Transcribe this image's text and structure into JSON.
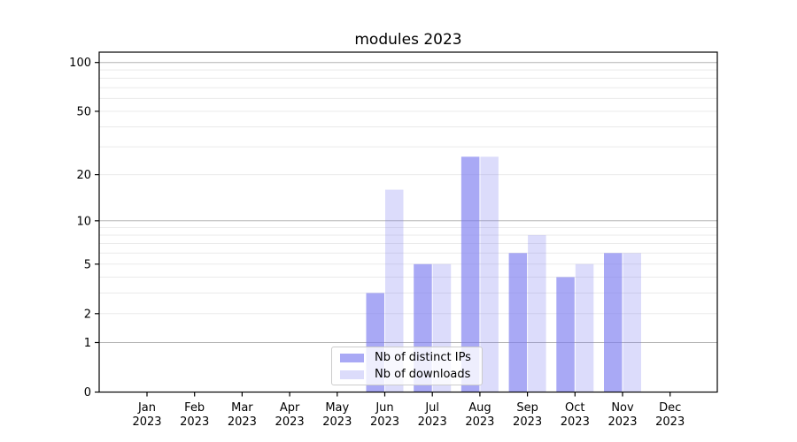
{
  "title": "modules 2023",
  "chart_data": {
    "type": "bar",
    "title": "modules 2023",
    "categories": [
      "Jan 2023",
      "Feb 2023",
      "Mar 2023",
      "Apr 2023",
      "May 2023",
      "Jun 2023",
      "Jul 2023",
      "Aug 2023",
      "Sep 2023",
      "Oct 2023",
      "Nov 2023",
      "Dec 2023"
    ],
    "x_months": [
      "Jan",
      "Feb",
      "Mar",
      "Apr",
      "May",
      "Jun",
      "Jul",
      "Aug",
      "Sep",
      "Oct",
      "Nov",
      "Dec"
    ],
    "x_year": "2023",
    "series": [
      {
        "name": "Nb of distinct IPs",
        "values": [
          0,
          0,
          0,
          0,
          0,
          3,
          5,
          26,
          6,
          4,
          6,
          0
        ]
      },
      {
        "name": "Nb of downloads",
        "values": [
          0,
          0,
          0,
          0,
          0,
          16,
          5,
          26,
          8,
          5,
          6,
          0
        ]
      }
    ],
    "yscale": "log10(1+value)",
    "ylim": [
      0,
      115
    ],
    "y_tick_values": [
      0,
      1,
      2,
      5,
      10,
      20,
      50,
      100
    ],
    "y_tick_labels": [
      "0",
      "1",
      "2",
      "5",
      "10",
      "20",
      "50",
      "100"
    ],
    "y_major_grid": [
      1,
      10,
      100
    ],
    "y_minor_grid": [
      2,
      3,
      4,
      5,
      6,
      7,
      8,
      9,
      20,
      30,
      40,
      50,
      60,
      70,
      80,
      90
    ],
    "grid": "both",
    "legend_position": "lower center",
    "xlabel": "",
    "ylabel": ""
  },
  "legend": {
    "items": [
      {
        "label": "Nb of distinct IPs",
        "color": "rgba(120,120,240,0.64)"
      },
      {
        "label": "Nb of downloads",
        "color": "rgba(120,120,240,0.26)"
      }
    ]
  },
  "colors": {
    "bar_ips": "rgba(120,120,240,0.64)",
    "bar_downloads": "rgba(120,120,240,0.26)",
    "grid_major": "#b3b3b3",
    "grid_minor": "#eaeaea",
    "axis": "#000000",
    "text": "#000000",
    "legend_bg": "rgba(255,255,255,0.8)",
    "legend_border": "#cccccc",
    "background": "#ffffff"
  }
}
